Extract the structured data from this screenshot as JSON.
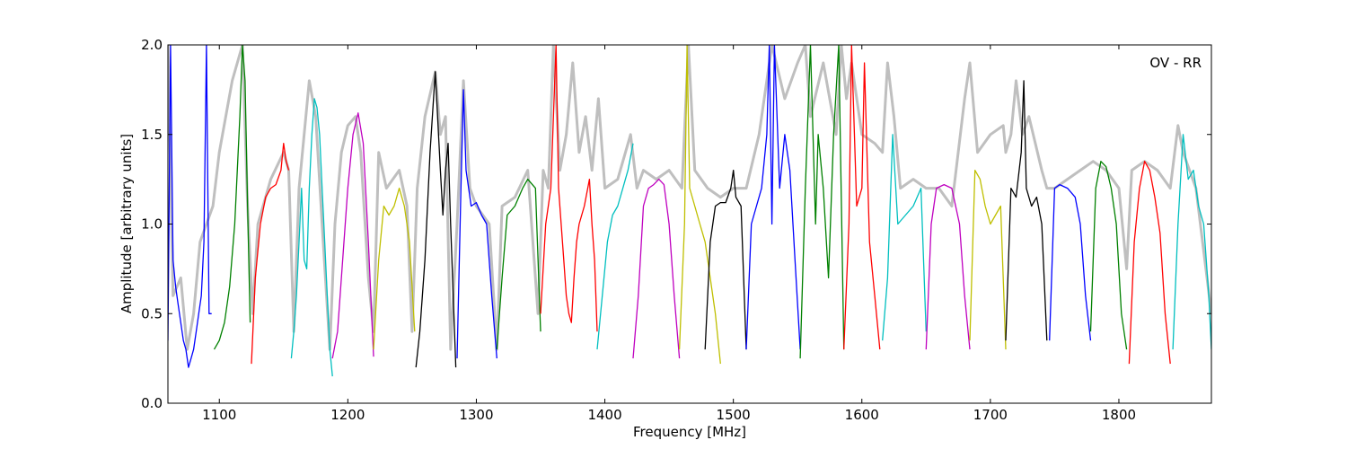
{
  "chart_data": {
    "type": "line",
    "annotation": "OV - RR",
    "xlabel": "Frequency [MHz]",
    "ylabel": "Amplitude [arbitrary units]",
    "xlim": [
      1060,
      1872
    ],
    "ylim": [
      0,
      2.0
    ],
    "xticks": [
      1100,
      1200,
      1300,
      1400,
      1500,
      1600,
      1700,
      1800
    ],
    "yticks": [
      0.0,
      0.5,
      1.0,
      1.5,
      2.0
    ],
    "ytick_labels": [
      "0.0",
      "0.5",
      "1.0",
      "1.5",
      "2.0"
    ],
    "grid": false,
    "legend": "none",
    "envelope_color": "#bfbfbf",
    "segment_colors": [
      "#0000ff",
      "#008000",
      "#ff0000",
      "#00bfbf",
      "#bf00bf",
      "#bfbf00",
      "#000000"
    ],
    "envelope": {
      "x": [
        1060,
        1064,
        1070,
        1075,
        1080,
        1085,
        1090,
        1095,
        1100,
        1110,
        1118,
        1122,
        1126,
        1130,
        1140,
        1150,
        1154,
        1158,
        1162,
        1166,
        1170,
        1175,
        1180,
        1186,
        1190,
        1195,
        1200,
        1206,
        1210,
        1216,
        1220,
        1224,
        1230,
        1240,
        1246,
        1250,
        1254,
        1260,
        1268,
        1272,
        1276,
        1280,
        1285,
        1290,
        1295,
        1300,
        1310,
        1316,
        1320,
        1330,
        1340,
        1348,
        1352,
        1356,
        1360,
        1365,
        1370,
        1375,
        1380,
        1385,
        1390,
        1395,
        1400,
        1410,
        1420,
        1425,
        1430,
        1440,
        1450,
        1460,
        1465,
        1470,
        1480,
        1490,
        1500,
        1510,
        1520,
        1530,
        1540,
        1550,
        1556,
        1560,
        1570,
        1580,
        1584,
        1588,
        1592,
        1600,
        1610,
        1616,
        1620,
        1625,
        1630,
        1640,
        1650,
        1660,
        1670,
        1680,
        1684,
        1690,
        1700,
        1710,
        1712,
        1716,
        1720,
        1725,
        1730,
        1740,
        1744,
        1750,
        1760,
        1770,
        1780,
        1790,
        1800,
        1806,
        1810,
        1820,
        1830,
        1840,
        1846,
        1850,
        1860,
        1872
      ],
      "y": [
        2.0,
        0.6,
        0.7,
        0.3,
        0.5,
        0.9,
        1.0,
        1.1,
        1.4,
        1.8,
        2.0,
        1.1,
        0.5,
        1.0,
        1.25,
        1.4,
        1.3,
        0.4,
        1.2,
        1.5,
        1.8,
        1.6,
        1.0,
        0.3,
        1.0,
        1.4,
        1.55,
        1.6,
        1.4,
        0.7,
        0.4,
        1.4,
        1.2,
        1.3,
        1.1,
        0.4,
        1.2,
        1.6,
        1.85,
        1.5,
        1.6,
        0.3,
        1.0,
        1.8,
        1.2,
        1.1,
        1.0,
        0.3,
        1.1,
        1.15,
        1.3,
        0.5,
        1.3,
        1.2,
        2.0,
        1.3,
        1.5,
        1.9,
        1.4,
        1.6,
        1.3,
        1.7,
        1.2,
        1.25,
        1.5,
        1.2,
        1.3,
        1.25,
        1.3,
        1.2,
        2.0,
        1.3,
        1.2,
        1.15,
        1.2,
        1.2,
        1.5,
        2.0,
        1.7,
        1.9,
        2.0,
        1.6,
        1.9,
        1.5,
        2.0,
        1.7,
        1.9,
        1.5,
        1.45,
        1.4,
        1.9,
        1.6,
        1.2,
        1.25,
        1.2,
        1.2,
        1.1,
        1.7,
        1.9,
        1.4,
        1.5,
        1.55,
        1.4,
        1.5,
        1.8,
        1.5,
        1.6,
        1.3,
        1.2,
        1.2,
        1.25,
        1.3,
        1.35,
        1.3,
        1.2,
        0.75,
        1.3,
        1.35,
        1.3,
        1.2,
        1.55,
        1.4,
        1.2,
        0.5
      ]
    },
    "segments": [
      {
        "color": "#0000ff",
        "x": [
          1060,
          1062,
          1064,
          1066,
          1068,
          1070,
          1072,
          1074,
          1076,
          1078,
          1080,
          1082,
          1084,
          1086,
          1088,
          1090,
          1092,
          1094
        ],
        "y": [
          0.35,
          2.0,
          0.8,
          0.65,
          0.55,
          0.45,
          0.35,
          0.3,
          0.2,
          0.25,
          0.3,
          0.4,
          0.5,
          0.6,
          0.9,
          2.0,
          0.5,
          0.5
        ]
      },
      {
        "color": "#008000",
        "x": [
          1096,
          1100,
          1104,
          1108,
          1112,
          1116,
          1118,
          1120,
          1122,
          1124
        ],
        "y": [
          0.3,
          0.35,
          0.45,
          0.65,
          1.0,
          1.6,
          2.0,
          1.8,
          1.1,
          0.45
        ]
      },
      {
        "color": "#ff0000",
        "x": [
          1125,
          1128,
          1132,
          1136,
          1140,
          1144,
          1148,
          1150,
          1152,
          1154
        ],
        "y": [
          0.22,
          0.7,
          1.0,
          1.15,
          1.2,
          1.22,
          1.3,
          1.45,
          1.35,
          1.3
        ]
      },
      {
        "color": "#00bfbf",
        "x": [
          1156,
          1158,
          1160,
          1162,
          1164,
          1166,
          1168,
          1170,
          1172,
          1174,
          1176,
          1178,
          1180,
          1182,
          1184,
          1186,
          1188
        ],
        "y": [
          0.25,
          0.4,
          0.6,
          0.9,
          1.2,
          0.8,
          0.75,
          1.2,
          1.5,
          1.7,
          1.65,
          1.5,
          1.2,
          0.9,
          0.6,
          0.3,
          0.15
        ]
      },
      {
        "color": "#bf00bf",
        "x": [
          1188,
          1192,
          1196,
          1200,
          1204,
          1208,
          1212,
          1216,
          1220
        ],
        "y": [
          0.25,
          0.4,
          0.8,
          1.2,
          1.5,
          1.62,
          1.45,
          0.9,
          0.26
        ]
      },
      {
        "color": "#bfbf00",
        "x": [
          1220,
          1224,
          1228,
          1232,
          1236,
          1240,
          1244,
          1248,
          1252
        ],
        "y": [
          0.3,
          0.8,
          1.1,
          1.05,
          1.1,
          1.2,
          1.1,
          0.9,
          0.4
        ]
      },
      {
        "color": "#000000",
        "x": [
          1253,
          1256,
          1260,
          1264,
          1268,
          1272,
          1274,
          1276,
          1278,
          1280,
          1284
        ],
        "y": [
          0.2,
          0.4,
          0.8,
          1.4,
          1.85,
          1.3,
          1.05,
          1.3,
          1.45,
          1.0,
          0.2
        ]
      },
      {
        "color": "#0000ff",
        "x": [
          1285,
          1288,
          1290,
          1292,
          1296,
          1300,
          1304,
          1308,
          1312,
          1316
        ],
        "y": [
          0.25,
          1.2,
          1.75,
          1.3,
          1.1,
          1.12,
          1.05,
          1.0,
          0.6,
          0.25
        ]
      },
      {
        "color": "#008000",
        "x": [
          1316,
          1320,
          1324,
          1330,
          1336,
          1340,
          1346,
          1350
        ],
        "y": [
          0.3,
          0.7,
          1.05,
          1.1,
          1.2,
          1.25,
          1.2,
          0.4
        ]
      },
      {
        "color": "#ff0000",
        "x": [
          1350,
          1354,
          1358,
          1362,
          1364,
          1366,
          1368,
          1370,
          1372,
          1374,
          1376,
          1378,
          1380,
          1384,
          1388,
          1390,
          1392,
          1394
        ],
        "y": [
          0.5,
          1.0,
          1.2,
          2.0,
          1.2,
          1.0,
          0.8,
          0.6,
          0.5,
          0.45,
          0.7,
          0.9,
          1.0,
          1.1,
          1.25,
          1.0,
          0.8,
          0.4
        ]
      },
      {
        "color": "#00bfbf",
        "x": [
          1394,
          1398,
          1402,
          1406,
          1410,
          1414,
          1418,
          1422
        ],
        "y": [
          0.3,
          0.6,
          0.9,
          1.05,
          1.1,
          1.2,
          1.3,
          1.45
        ]
      },
      {
        "color": "#bf00bf",
        "x": [
          1422,
          1426,
          1430,
          1434,
          1438,
          1442,
          1446,
          1450,
          1454,
          1458
        ],
        "y": [
          0.25,
          0.6,
          1.1,
          1.2,
          1.22,
          1.25,
          1.22,
          1.0,
          0.6,
          0.25
        ]
      },
      {
        "color": "#bfbf00",
        "x": [
          1458,
          1462,
          1464,
          1466,
          1470,
          1474,
          1478,
          1482,
          1486,
          1490
        ],
        "y": [
          0.3,
          1.0,
          2.0,
          1.2,
          1.1,
          1.0,
          0.9,
          0.7,
          0.5,
          0.22
        ]
      },
      {
        "color": "#000000",
        "x": [
          1478,
          1482,
          1486,
          1490,
          1494,
          1498,
          1500,
          1502,
          1506,
          1510
        ],
        "y": [
          0.3,
          0.9,
          1.1,
          1.12,
          1.12,
          1.2,
          1.3,
          1.15,
          1.1,
          0.3
        ]
      },
      {
        "color": "#0000ff",
        "x": [
          1510,
          1514,
          1518,
          1522,
          1526,
          1528,
          1530,
          1532,
          1536,
          1540,
          1544,
          1548,
          1552
        ],
        "y": [
          0.3,
          1.0,
          1.1,
          1.2,
          1.5,
          2.0,
          1.0,
          2.0,
          1.2,
          1.5,
          1.3,
          0.8,
          0.3
        ]
      },
      {
        "color": "#008000",
        "x": [
          1552,
          1556,
          1560,
          1564,
          1566,
          1570,
          1574,
          1578,
          1582,
          1586
        ],
        "y": [
          0.25,
          1.2,
          2.0,
          1.0,
          1.5,
          1.2,
          0.7,
          1.5,
          2.0,
          0.3
        ]
      },
      {
        "color": "#ff0000",
        "x": [
          1586,
          1590,
          1592,
          1596,
          1600,
          1602,
          1606,
          1610,
          1614
        ],
        "y": [
          0.3,
          1.0,
          2.0,
          1.1,
          1.2,
          1.9,
          0.9,
          0.6,
          0.3
        ]
      },
      {
        "color": "#00bfbf",
        "x": [
          1616,
          1620,
          1622,
          1624,
          1628,
          1634,
          1640,
          1646,
          1650
        ],
        "y": [
          0.35,
          0.7,
          1.1,
          1.5,
          1.0,
          1.05,
          1.1,
          1.2,
          0.4
        ]
      },
      {
        "color": "#bf00bf",
        "x": [
          1650,
          1654,
          1658,
          1664,
          1670,
          1676,
          1680,
          1684
        ],
        "y": [
          0.3,
          1.0,
          1.2,
          1.22,
          1.2,
          1.0,
          0.6,
          0.3
        ]
      },
      {
        "color": "#bfbf00",
        "x": [
          1684,
          1688,
          1692,
          1696,
          1700,
          1704,
          1708,
          1712
        ],
        "y": [
          0.35,
          1.3,
          1.25,
          1.1,
          1.0,
          1.05,
          1.1,
          0.3
        ]
      },
      {
        "color": "#000000",
        "x": [
          1712,
          1716,
          1720,
          1724,
          1726,
          1728,
          1732,
          1736,
          1740,
          1744
        ],
        "y": [
          0.35,
          1.2,
          1.15,
          1.4,
          1.8,
          1.2,
          1.1,
          1.15,
          1.0,
          0.35
        ]
      },
      {
        "color": "#0000ff",
        "x": [
          1746,
          1750,
          1754,
          1760,
          1766,
          1770,
          1774,
          1778
        ],
        "y": [
          0.35,
          1.2,
          1.22,
          1.2,
          1.15,
          1.0,
          0.6,
          0.35
        ]
      },
      {
        "color": "#008000",
        "x": [
          1778,
          1782,
          1786,
          1790,
          1794,
          1798,
          1802,
          1806
        ],
        "y": [
          0.4,
          1.2,
          1.35,
          1.32,
          1.2,
          1.0,
          0.5,
          0.3
        ]
      },
      {
        "color": "#ff0000",
        "x": [
          1808,
          1812,
          1816,
          1820,
          1824,
          1828,
          1832,
          1836,
          1840
        ],
        "y": [
          0.22,
          0.9,
          1.2,
          1.35,
          1.3,
          1.15,
          0.95,
          0.5,
          0.22
        ]
      },
      {
        "color": "#00bfbf",
        "x": [
          1842,
          1846,
          1850,
          1854,
          1858,
          1862,
          1866,
          1870,
          1872
        ],
        "y": [
          0.3,
          1.0,
          1.5,
          1.25,
          1.3,
          1.1,
          1.0,
          0.6,
          0.3
        ]
      }
    ]
  }
}
